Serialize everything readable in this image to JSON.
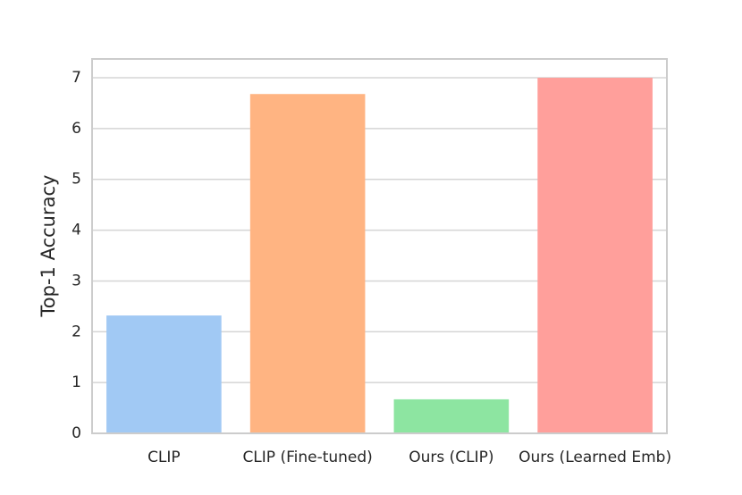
{
  "chart_data": {
    "type": "bar",
    "y_label": "Top-1 Accuracy",
    "categories": [
      "CLIP",
      "CLIP (Fine-tuned)",
      "Ours (CLIP)",
      "Ours (Learned Emb)"
    ],
    "values": [
      2.32,
      6.68,
      0.67,
      7.0
    ],
    "colors": [
      "#a1c9f4",
      "#ffb482",
      "#8de5a1",
      "#ff9f9b"
    ],
    "ylim": [
      0,
      7.37
    ],
    "yticks": [
      0,
      1,
      2,
      3,
      4,
      5,
      6,
      7
    ],
    "grid": true
  }
}
